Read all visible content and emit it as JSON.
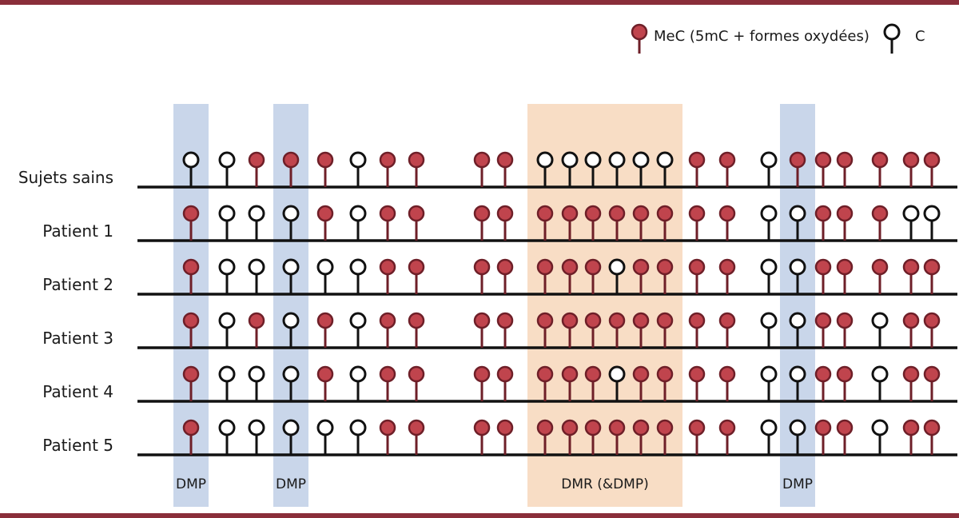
{
  "colors": {
    "border": "#8a2e3a",
    "methylated_fill": "#c0444d",
    "methylated_stroke": "#6e1f28",
    "unmethylated_stroke": "#111111",
    "dmp_band": "#c9d6ea",
    "dmr_band": "#f8ddc5",
    "line": "#111111"
  },
  "legend": {
    "methylated_label": "MeC (5mC + formes oxydées)",
    "unmethylated_label": "C",
    "methylated_icon": "methylated-cpg-icon",
    "unmethylated_icon": "unmethylated-cpg-icon"
  },
  "regions": [
    {
      "type": "DMP",
      "label": "DMP",
      "sites": [
        0
      ]
    },
    {
      "type": "DMP",
      "label": "DMP",
      "sites": [
        3
      ]
    },
    {
      "type": "DMR",
      "label": "DMR (&DMP)",
      "sites": [
        10,
        11,
        12,
        13,
        14,
        15
      ]
    },
    {
      "type": "DMP",
      "label": "DMP",
      "sites": [
        19
      ]
    }
  ],
  "rows": [
    {
      "label": "Sujets sains",
      "states": "UUMMMUMMMMUUUUUUMMUMMMMMM"
    },
    {
      "label": "Patient 1",
      "states": "MUUUMUMMMMMMMMMMMMUUMMMUU"
    },
    {
      "label": "Patient 2",
      "states": "MUUUUUMMMMMMMUMMMMUUMMMMM"
    },
    {
      "label": "Patient 3",
      "states": "MUMUMUMMMMMMMMMMMMUUMMUMM"
    },
    {
      "label": "Patient 4",
      "states": "MUUUMUMMMMMMMUMMMMUUMMUMM"
    },
    {
      "label": "Patient 5",
      "states": "MUUUUUMMMMMMMMMMMMUUMMUMM"
    }
  ]
}
